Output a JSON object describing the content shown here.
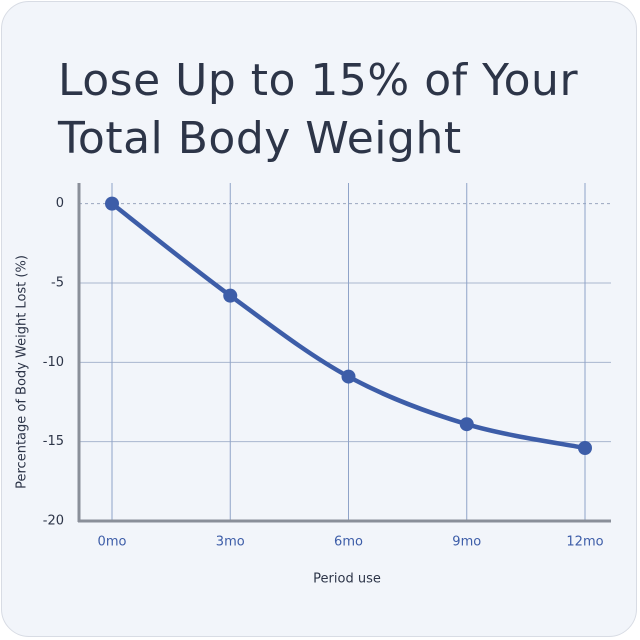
{
  "chart_data": {
    "type": "line",
    "title": "Lose Up to 15% of Your Total Body Weight",
    "x_label": "Period use",
    "y_label": "Percentage of Body Weight Lost (%)",
    "categories": [
      "0mo",
      "3mo",
      "6mo",
      "9mo",
      "12mo"
    ],
    "values": [
      0,
      -5.8,
      -10.9,
      -13.9,
      -15.4
    ],
    "color": "#3d5da8",
    "ylim": [
      -20,
      1.3
    ],
    "yticks": [
      0,
      -5,
      -10,
      -15,
      -20
    ],
    "grid": true
  }
}
